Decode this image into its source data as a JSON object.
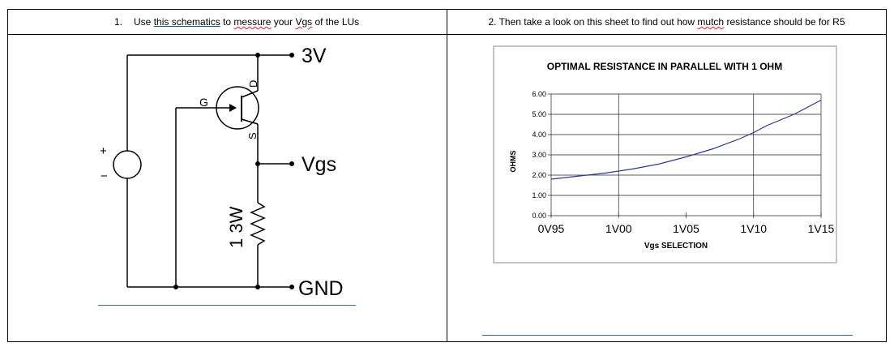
{
  "cells": {
    "left_header": {
      "number": "1.",
      "text_parts": [
        "Use ",
        "this schematics",
        " to ",
        "messure",
        " your ",
        "Vgs",
        " of the LUs"
      ]
    },
    "right_header": {
      "text_parts": [
        "2. Then take a look on this sheet to find out how ",
        "mutch",
        " resistance should be for R5"
      ]
    }
  },
  "schematic": {
    "label_3v": "3V",
    "label_vgs": "Vgs",
    "label_gnd": "GND",
    "label_g": "G",
    "label_d": "D",
    "label_s": "S",
    "label_resistor": "1 3W",
    "label_plus": "+",
    "label_minus": "−"
  },
  "chart_data": {
    "type": "line",
    "title": "OPTIMAL RESISTANCE IN PARALLEL WITH 1 OHM",
    "xlabel": "Vgs SELECTION",
    "ylabel": "OHMS",
    "x_tick_labels": [
      "0V95",
      "1V00",
      "1V05",
      "1V10",
      "1V15"
    ],
    "x_ticks": [
      0.95,
      1.0,
      1.05,
      1.1,
      1.15
    ],
    "y_tick_labels": [
      "6.00",
      "5.00",
      "4.00",
      "3.00",
      "2.00",
      "1.00",
      "0.00"
    ],
    "y_ticks": [
      6,
      5,
      4,
      3,
      2,
      1,
      0
    ],
    "xlim": [
      0.95,
      1.15
    ],
    "ylim": [
      0,
      6
    ],
    "grid": "major x and y",
    "series": [
      {
        "color": "#2a3a8c",
        "x": [
          0.95,
          0.97,
          0.99,
          1.0,
          1.01,
          1.03,
          1.05,
          1.07,
          1.09,
          1.1,
          1.11,
          1.13,
          1.15
        ],
        "y": [
          1.8,
          1.95,
          2.1,
          2.2,
          2.3,
          2.55,
          2.9,
          3.3,
          3.8,
          4.1,
          4.45,
          5.0,
          5.7
        ]
      }
    ]
  }
}
